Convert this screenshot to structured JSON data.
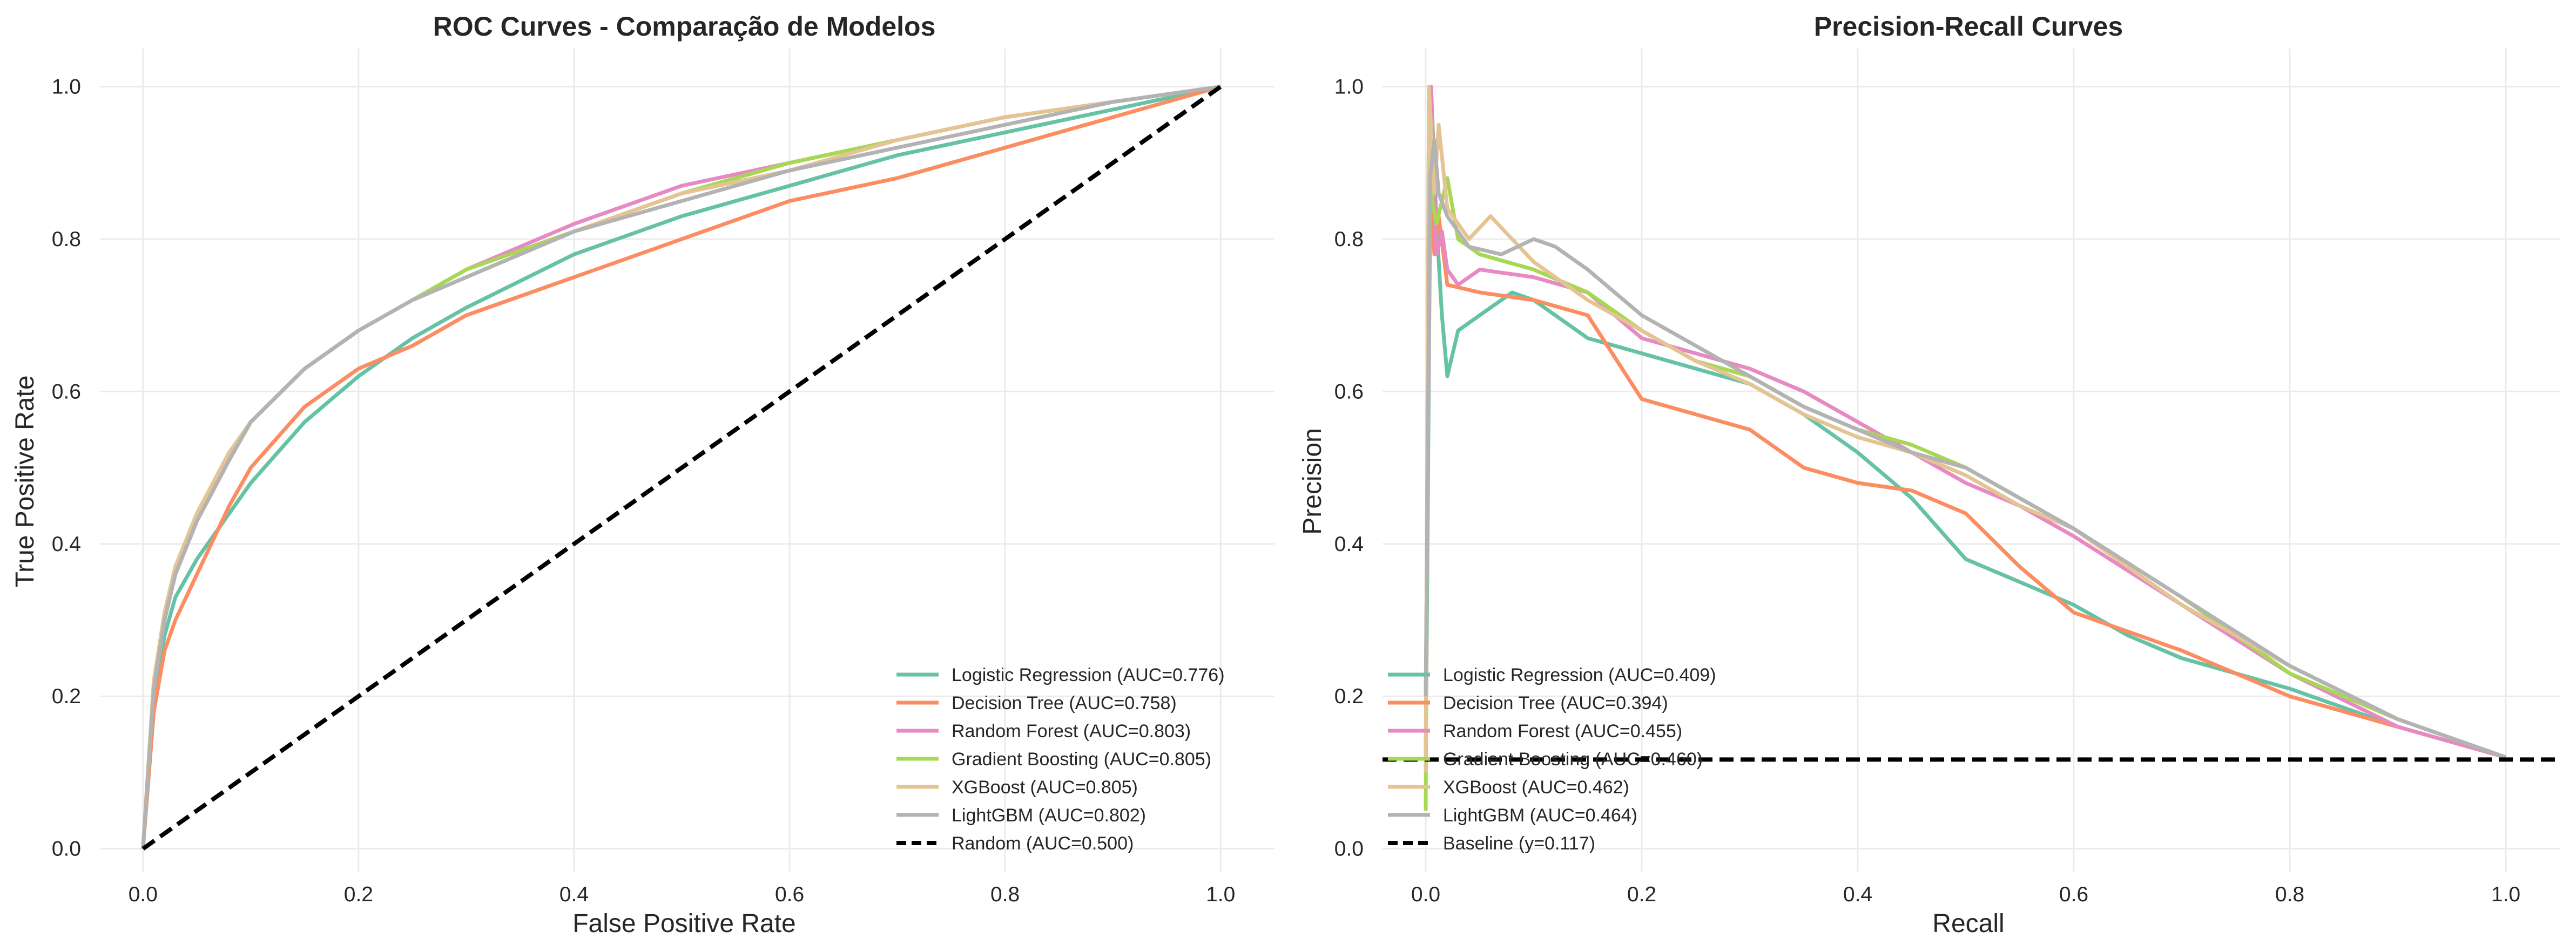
{
  "colors": {
    "Logistic Regression": "#66c2a5",
    "Decision Tree": "#fc8d62",
    "Random Forest": "#e78ac3",
    "Gradient Boosting": "#a6d854",
    "XGBoost": "#e5c494",
    "LightGBM": "#b3b3b3",
    "reference": "#000000",
    "grid": "#ebebeb",
    "text": "#262626"
  },
  "chart_data": [
    {
      "type": "line",
      "title": "ROC Curves - Comparação de Modelos",
      "xlabel": "False Positive Rate",
      "ylabel": "True Positive Rate",
      "xlim": [
        -0.04,
        1.05
      ],
      "ylim": [
        -0.03,
        1.05
      ],
      "xticks": [
        0.0,
        0.2,
        0.4,
        0.6,
        0.8,
        1.0
      ],
      "yticks": [
        0.0,
        0.2,
        0.4,
        0.6,
        0.8,
        1.0
      ],
      "xtick_labels": [
        "0.0",
        "0.2",
        "0.4",
        "0.6",
        "0.8",
        "1.0"
      ],
      "ytick_labels": [
        "0.0",
        "0.2",
        "0.4",
        "0.6",
        "0.8",
        "1.0"
      ],
      "grid": true,
      "legend_position": "lower right",
      "series": [
        {
          "name": "Logistic Regression (AUC=0.776)",
          "color_key": "Logistic Regression",
          "dashed": false,
          "x": [
            0,
            0.01,
            0.02,
            0.03,
            0.05,
            0.08,
            0.1,
            0.15,
            0.2,
            0.25,
            0.3,
            0.4,
            0.5,
            0.6,
            0.7,
            0.8,
            0.9,
            1.0
          ],
          "y": [
            0,
            0.2,
            0.28,
            0.33,
            0.38,
            0.44,
            0.48,
            0.56,
            0.62,
            0.67,
            0.71,
            0.78,
            0.83,
            0.87,
            0.91,
            0.94,
            0.97,
            1.0
          ]
        },
        {
          "name": "Decision Tree (AUC=0.758)",
          "color_key": "Decision Tree",
          "dashed": false,
          "x": [
            0,
            0.01,
            0.02,
            0.03,
            0.05,
            0.08,
            0.1,
            0.15,
            0.2,
            0.25,
            0.3,
            0.4,
            0.5,
            0.6,
            0.7,
            0.8,
            0.9,
            1.0
          ],
          "y": [
            0,
            0.18,
            0.26,
            0.3,
            0.36,
            0.45,
            0.5,
            0.58,
            0.63,
            0.66,
            0.7,
            0.75,
            0.8,
            0.85,
            0.88,
            0.92,
            0.96,
            1.0
          ]
        },
        {
          "name": "Random Forest (AUC=0.803)",
          "color_key": "Random Forest",
          "dashed": false,
          "x": [
            0,
            0.01,
            0.02,
            0.03,
            0.05,
            0.08,
            0.1,
            0.15,
            0.2,
            0.25,
            0.3,
            0.4,
            0.5,
            0.6,
            0.7,
            0.8,
            0.9,
            1.0
          ],
          "y": [
            0,
            0.22,
            0.3,
            0.36,
            0.43,
            0.51,
            0.56,
            0.63,
            0.68,
            0.72,
            0.76,
            0.82,
            0.87,
            0.9,
            0.93,
            0.96,
            0.98,
            1.0
          ]
        },
        {
          "name": "Gradient Boosting (AUC=0.805)",
          "color_key": "Gradient Boosting",
          "dashed": false,
          "x": [
            0,
            0.01,
            0.02,
            0.03,
            0.05,
            0.08,
            0.1,
            0.15,
            0.2,
            0.25,
            0.3,
            0.4,
            0.5,
            0.6,
            0.7,
            0.8,
            0.9,
            1.0
          ],
          "y": [
            0,
            0.22,
            0.31,
            0.37,
            0.44,
            0.52,
            0.56,
            0.63,
            0.68,
            0.72,
            0.76,
            0.81,
            0.86,
            0.9,
            0.93,
            0.96,
            0.98,
            1.0
          ]
        },
        {
          "name": "XGBoost (AUC=0.805)",
          "color_key": "XGBoost",
          "dashed": false,
          "x": [
            0,
            0.01,
            0.02,
            0.03,
            0.05,
            0.08,
            0.1,
            0.15,
            0.2,
            0.25,
            0.3,
            0.4,
            0.5,
            0.6,
            0.7,
            0.8,
            0.9,
            1.0
          ],
          "y": [
            0,
            0.22,
            0.31,
            0.37,
            0.44,
            0.52,
            0.56,
            0.63,
            0.68,
            0.72,
            0.75,
            0.81,
            0.86,
            0.89,
            0.93,
            0.96,
            0.98,
            1.0
          ]
        },
        {
          "name": "LightGBM (AUC=0.802)",
          "color_key": "LightGBM",
          "dashed": false,
          "x": [
            0,
            0.01,
            0.02,
            0.03,
            0.05,
            0.08,
            0.1,
            0.15,
            0.2,
            0.25,
            0.3,
            0.4,
            0.5,
            0.6,
            0.7,
            0.8,
            0.9,
            1.0
          ],
          "y": [
            0,
            0.21,
            0.3,
            0.36,
            0.43,
            0.51,
            0.56,
            0.63,
            0.68,
            0.72,
            0.75,
            0.81,
            0.85,
            0.89,
            0.92,
            0.95,
            0.98,
            1.0
          ]
        },
        {
          "name": "Random (AUC=0.500)",
          "color_key": "reference",
          "dashed": true,
          "x": [
            0,
            1
          ],
          "y": [
            0,
            1
          ]
        }
      ]
    },
    {
      "type": "line",
      "title": "Precision-Recall Curves",
      "xlabel": "Recall",
      "ylabel": "Precision",
      "xlim": [
        -0.04,
        1.05
      ],
      "ylim": [
        -0.03,
        1.05
      ],
      "xticks": [
        0.0,
        0.2,
        0.4,
        0.6,
        0.8,
        1.0
      ],
      "yticks": [
        0.0,
        0.2,
        0.4,
        0.6,
        0.8,
        1.0
      ],
      "xtick_labels": [
        "0.0",
        "0.2",
        "0.4",
        "0.6",
        "0.8",
        "1.0"
      ],
      "ytick_labels": [
        "0.0",
        "0.2",
        "0.4",
        "0.6",
        "0.8",
        "1.0"
      ],
      "grid": true,
      "legend_position": "lower left",
      "series": [
        {
          "name": "Logistic Regression (AUC=0.409)",
          "color_key": "Logistic Regression",
          "dashed": false,
          "x": [
            0.0,
            0.005,
            0.01,
            0.015,
            0.02,
            0.03,
            0.05,
            0.08,
            0.1,
            0.15,
            0.2,
            0.25,
            0.3,
            0.35,
            0.4,
            0.45,
            0.5,
            0.55,
            0.6,
            0.65,
            0.7,
            0.8,
            0.9,
            1.0
          ],
          "y": [
            0.1,
            1.0,
            0.82,
            0.7,
            0.62,
            0.68,
            0.7,
            0.73,
            0.72,
            0.67,
            0.65,
            0.63,
            0.61,
            0.57,
            0.52,
            0.46,
            0.38,
            0.35,
            0.32,
            0.28,
            0.25,
            0.21,
            0.16,
            0.12
          ]
        },
        {
          "name": "Decision Tree (AUC=0.394)",
          "color_key": "Decision Tree",
          "dashed": false,
          "x": [
            0.0,
            0.003,
            0.008,
            0.012,
            0.02,
            0.05,
            0.1,
            0.15,
            0.2,
            0.25,
            0.3,
            0.35,
            0.4,
            0.45,
            0.5,
            0.55,
            0.6,
            0.7,
            0.8,
            0.9,
            1.0
          ],
          "y": [
            0.12,
            0.9,
            0.78,
            0.83,
            0.74,
            0.73,
            0.72,
            0.7,
            0.59,
            0.57,
            0.55,
            0.5,
            0.48,
            0.47,
            0.44,
            0.37,
            0.31,
            0.26,
            0.2,
            0.16,
            0.12
          ]
        },
        {
          "name": "Random Forest (AUC=0.455)",
          "color_key": "Random Forest",
          "dashed": false,
          "x": [
            0.0,
            0.005,
            0.01,
            0.015,
            0.02,
            0.03,
            0.05,
            0.1,
            0.15,
            0.2,
            0.25,
            0.3,
            0.35,
            0.4,
            0.45,
            0.5,
            0.55,
            0.6,
            0.7,
            0.8,
            0.9,
            1.0
          ],
          "y": [
            0.2,
            1.0,
            0.78,
            0.81,
            0.76,
            0.74,
            0.76,
            0.75,
            0.73,
            0.67,
            0.65,
            0.63,
            0.6,
            0.56,
            0.52,
            0.48,
            0.45,
            0.41,
            0.32,
            0.23,
            0.16,
            0.12
          ]
        },
        {
          "name": "Gradient Boosting (AUC=0.460)",
          "color_key": "Gradient Boosting",
          "dashed": false,
          "x": [
            0.0,
            0.003,
            0.006,
            0.01,
            0.02,
            0.03,
            0.05,
            0.1,
            0.15,
            0.2,
            0.25,
            0.3,
            0.35,
            0.4,
            0.45,
            0.5,
            0.55,
            0.6,
            0.7,
            0.8,
            0.9,
            1.0
          ],
          "y": [
            0.05,
            1.0,
            0.85,
            0.82,
            0.88,
            0.8,
            0.78,
            0.76,
            0.73,
            0.68,
            0.64,
            0.62,
            0.58,
            0.55,
            0.53,
            0.5,
            0.46,
            0.42,
            0.33,
            0.23,
            0.17,
            0.12
          ]
        },
        {
          "name": "XGBoost (AUC=0.462)",
          "color_key": "XGBoost",
          "dashed": false,
          "x": [
            0.0,
            0.003,
            0.008,
            0.012,
            0.02,
            0.04,
            0.06,
            0.1,
            0.15,
            0.2,
            0.25,
            0.3,
            0.35,
            0.4,
            0.45,
            0.5,
            0.55,
            0.6,
            0.7,
            0.8,
            0.9,
            1.0
          ],
          "y": [
            0.1,
            1.0,
            0.86,
            0.95,
            0.84,
            0.8,
            0.83,
            0.77,
            0.72,
            0.68,
            0.64,
            0.61,
            0.57,
            0.54,
            0.52,
            0.49,
            0.45,
            0.42,
            0.32,
            0.24,
            0.17,
            0.12
          ]
        },
        {
          "name": "LightGBM (AUC=0.464)",
          "color_key": "LightGBM",
          "dashed": false,
          "x": [
            0.0,
            0.004,
            0.008,
            0.012,
            0.02,
            0.04,
            0.07,
            0.1,
            0.12,
            0.15,
            0.2,
            0.25,
            0.3,
            0.35,
            0.4,
            0.45,
            0.5,
            0.55,
            0.6,
            0.7,
            0.8,
            0.9,
            1.0
          ],
          "y": [
            0.2,
            0.88,
            0.93,
            0.86,
            0.83,
            0.79,
            0.78,
            0.8,
            0.79,
            0.76,
            0.7,
            0.66,
            0.62,
            0.58,
            0.55,
            0.52,
            0.5,
            0.46,
            0.42,
            0.33,
            0.24,
            0.17,
            0.12
          ]
        },
        {
          "name": "Baseline (y=0.117)",
          "color_key": "reference",
          "dashed": true,
          "x": [
            -0.04,
            1.05
          ],
          "y": [
            0.117,
            0.117
          ]
        }
      ]
    }
  ]
}
